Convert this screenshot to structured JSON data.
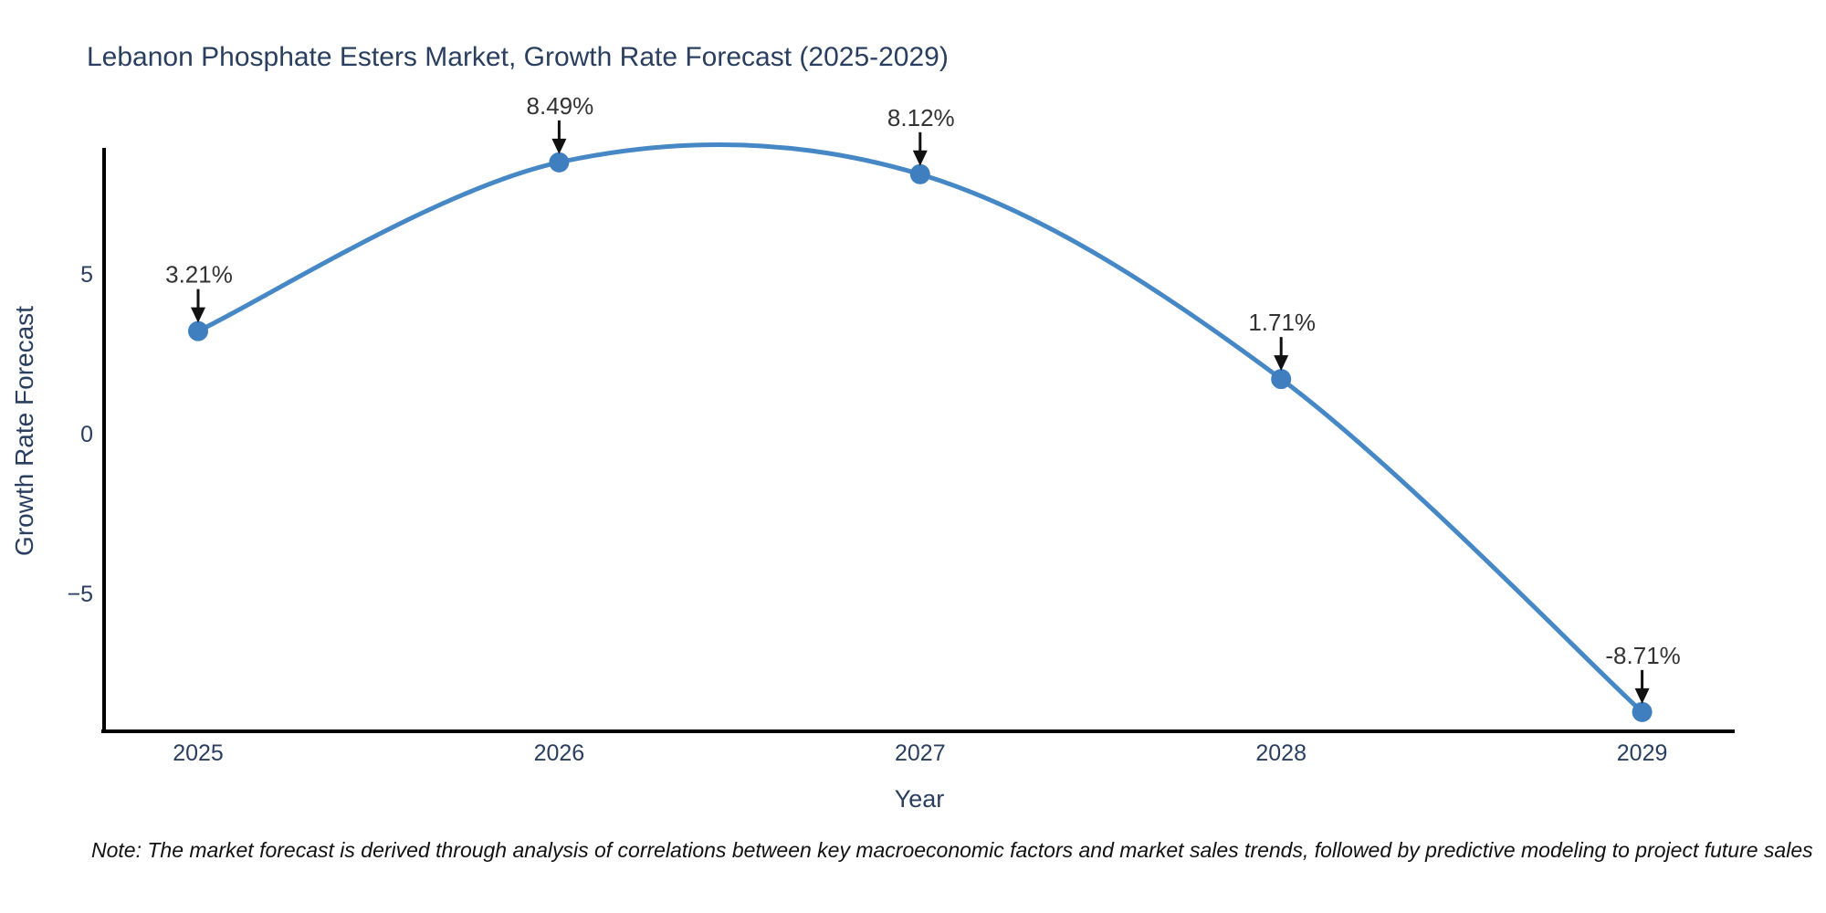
{
  "chart_data": {
    "type": "line",
    "title": "Lebanon Phosphate Esters Market, Growth Rate Forecast (2025-2029)",
    "xlabel": "Year",
    "ylabel": "Growth Rate Forecast",
    "x": [
      2025,
      2026,
      2027,
      2028,
      2029
    ],
    "series": [
      {
        "name": "Growth Rate Forecast",
        "values": [
          3.21,
          8.49,
          8.12,
          1.71,
          -8.71
        ],
        "point_labels": [
          "3.21%",
          "8.49%",
          "8.12%",
          "1.71%",
          "-8.71%"
        ]
      }
    ],
    "xticks": [
      "2025",
      "2026",
      "2027",
      "2028",
      "2029"
    ],
    "yticks": [
      {
        "value": 5,
        "label": "5"
      },
      {
        "value": 0,
        "label": "0"
      },
      {
        "value": -5,
        "label": "−5"
      }
    ],
    "ylim": [
      -9.3,
      8.9
    ],
    "grid": false,
    "legend_position": "none",
    "line_smoothing": "spline",
    "annotations_have_arrows": true,
    "colors": {
      "line": "#4688c6",
      "marker": "#3f7fbf",
      "axis_line": "#000000",
      "tick_text": "#2a3f5f",
      "annotation_text": "#333333",
      "arrow": "#111111",
      "background": "#ffffff"
    },
    "note": "Note: The market forecast is derived through analysis of correlations between key macroeconomic factors and market sales trends, followed by predictive modeling to project future sales"
  }
}
